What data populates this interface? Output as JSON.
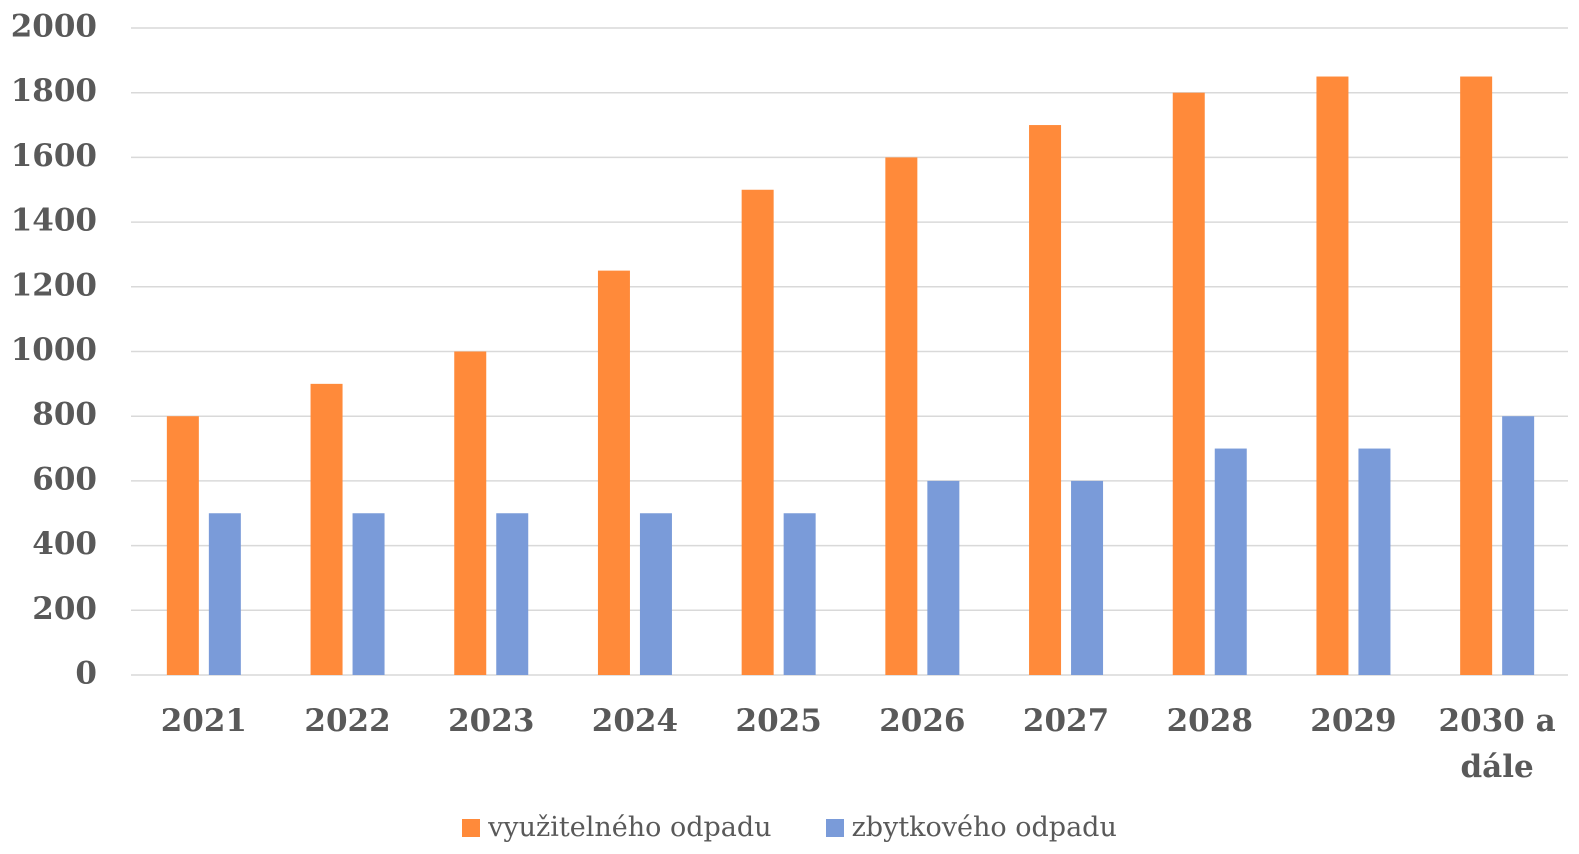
{
  "chart_data": {
    "type": "bar",
    "categories": [
      "2021",
      "2022",
      "2023",
      "2024",
      "2025",
      "2026",
      "2027",
      "2028",
      "2029",
      "2030 a dále"
    ],
    "series": [
      {
        "name": "využitelného odpadu",
        "color": "#ff8a3a",
        "values": [
          800,
          900,
          1000,
          1250,
          1500,
          1600,
          1700,
          1800,
          1850,
          1850
        ]
      },
      {
        "name": "zbytkového odpadu",
        "color": "#7a9bd9",
        "values": [
          500,
          500,
          500,
          500,
          500,
          600,
          600,
          700,
          700,
          800
        ]
      }
    ],
    "ylim": [
      0,
      2000
    ],
    "yticks": [
      0,
      200,
      400,
      600,
      800,
      1000,
      1200,
      1400,
      1600,
      1800,
      2000
    ],
    "grid": true,
    "legend": "bottom"
  }
}
